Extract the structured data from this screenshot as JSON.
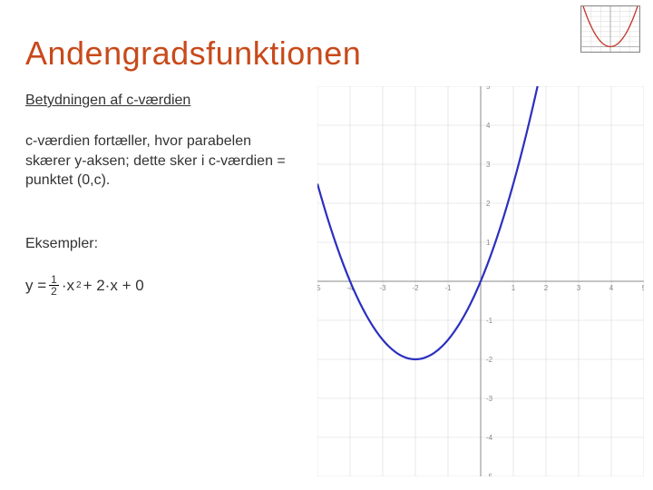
{
  "title": {
    "text": "Andengradsfunktionen",
    "color": "#c84a1a",
    "fontsize": 36
  },
  "subtitle": {
    "text": "Betydningen af c-værdien",
    "color": "#333333",
    "fontsize": 16
  },
  "body": {
    "text": "c-værdien fortæller, hvor parabelen skærer y-aksen; dette sker i c-værdien = punktet (0,c).",
    "color": "#333333",
    "fontsize": 16
  },
  "examples_label": {
    "text": "Eksempler:",
    "color": "#333333",
    "fontsize": 16
  },
  "equation": {
    "prefix": "y = ",
    "frac_num": "1",
    "frac_den": "2",
    "mid": "·x",
    "exp": "2",
    "suffix": " + 2·x + 0",
    "color": "#333333"
  },
  "chart": {
    "type": "line",
    "xlim": [
      -5,
      5
    ],
    "ylim": [
      -5,
      5
    ],
    "xtick_step": 1,
    "ytick_step": 1,
    "xticks": [
      -5,
      -4,
      -3,
      -2,
      -1,
      1,
      2,
      3,
      4,
      5
    ],
    "yticks": [
      -5,
      -4,
      -3,
      -2,
      -1,
      1,
      2,
      3,
      4,
      5
    ],
    "tick_fontsize": 8,
    "tick_color": "#888888",
    "grid": true,
    "grid_color": "#d8d8d8",
    "axis_color": "#888888",
    "background_color": "#ffffff",
    "curve": {
      "a": 0.5,
      "b": 2,
      "c": 0,
      "color": "#2b2fbf",
      "width": 2.2,
      "x_from": -5,
      "x_to": 5,
      "step": 0.1
    }
  },
  "thumb": {
    "type": "line",
    "xlim": [
      -3,
      3
    ],
    "ylim": [
      -1,
      8
    ],
    "curve": {
      "a": 1,
      "b": 0,
      "c": 0,
      "color": "#c23a2e",
      "width": 1.4
    },
    "grid_color": "#dddddd",
    "axis_color": "#aaaaaa",
    "background_color": "#ffffff"
  }
}
